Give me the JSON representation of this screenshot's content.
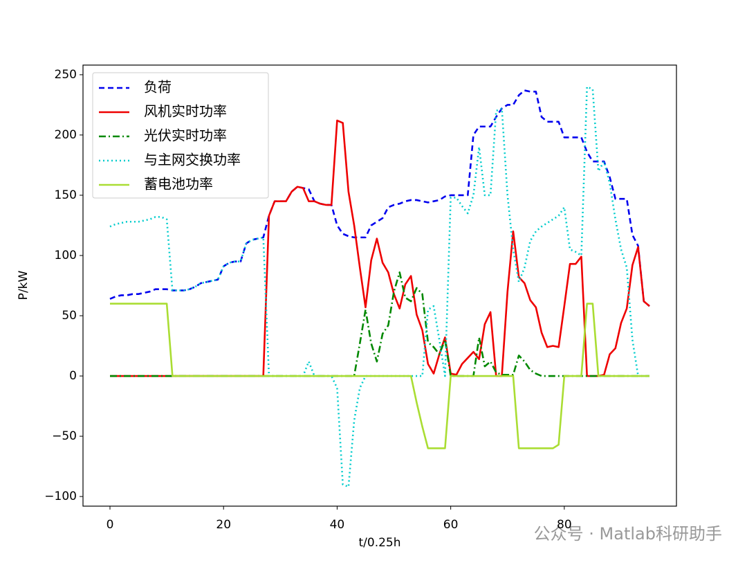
{
  "chart_data": {
    "type": "line",
    "xlabel": "t/0.25h",
    "ylabel": "P/kW",
    "watermark": "公众号 · Matlab科研助手",
    "x": [
      0,
      1,
      2,
      3,
      4,
      5,
      6,
      7,
      8,
      9,
      10,
      11,
      12,
      13,
      14,
      15,
      16,
      17,
      18,
      19,
      20,
      21,
      22,
      23,
      24,
      25,
      26,
      27,
      28,
      29,
      30,
      31,
      32,
      33,
      34,
      35,
      36,
      37,
      38,
      39,
      40,
      41,
      42,
      43,
      44,
      45,
      46,
      47,
      48,
      49,
      50,
      51,
      52,
      53,
      54,
      55,
      56,
      57,
      58,
      59,
      60,
      61,
      62,
      63,
      64,
      65,
      66,
      67,
      68,
      69,
      70,
      71,
      72,
      73,
      74,
      75,
      76,
      77,
      78,
      79,
      80,
      81,
      82,
      83,
      84,
      85,
      86,
      87,
      88,
      89,
      90,
      91,
      92,
      93,
      94,
      95
    ],
    "series": [
      {
        "name": "负荷",
        "color": "#0000ee",
        "dash": "8,5",
        "values": [
          64,
          66,
          67,
          67,
          68,
          68,
          69,
          70,
          72,
          72,
          72,
          71,
          71,
          71,
          72,
          74,
          77,
          78,
          79,
          80,
          91,
          94,
          95,
          95,
          110,
          113,
          114,
          115,
          133,
          145,
          145,
          145,
          153,
          157,
          156,
          155,
          145,
          143,
          142,
          142,
          125,
          118,
          116,
          115,
          115,
          115,
          125,
          128,
          131,
          140,
          142,
          143,
          145,
          146,
          146,
          145,
          144,
          145,
          146,
          149,
          150,
          150,
          150,
          150,
          200,
          207,
          207,
          207,
          215,
          222,
          225,
          225,
          233,
          237,
          236,
          236,
          215,
          211,
          211,
          211,
          198,
          198,
          198,
          198,
          186,
          178,
          178,
          178,
          165,
          147,
          147,
          147,
          117,
          108,
          62,
          58
        ]
      },
      {
        "name": "风机实时功率",
        "color": "#ee0000",
        "dash": "",
        "values": [
          0,
          0,
          0,
          0,
          0,
          0,
          0,
          0,
          0,
          0,
          0,
          0,
          0,
          0,
          0,
          0,
          0,
          0,
          0,
          0,
          0,
          0,
          0,
          0,
          0,
          0,
          0,
          0,
          133,
          145,
          145,
          145,
          153,
          157,
          156,
          145,
          145,
          143,
          142,
          142,
          212,
          210,
          153,
          125,
          90,
          57,
          96,
          114,
          94,
          86,
          68,
          56,
          76,
          83,
          51,
          38,
          10,
          2,
          18,
          32,
          2,
          1,
          10,
          15,
          20,
          14,
          43,
          53,
          0,
          0,
          70,
          120,
          82,
          77,
          63,
          57,
          36,
          24,
          25,
          24,
          58,
          93,
          93,
          99,
          0,
          0,
          0,
          1,
          18,
          23,
          44,
          56,
          92,
          107,
          62,
          58
        ]
      },
      {
        "name": "光伏实时功率",
        "color": "#008800",
        "dash": "10,4,2,4",
        "values": [
          0,
          0,
          0,
          0,
          0,
          0,
          0,
          0,
          0,
          0,
          0,
          0,
          0,
          0,
          0,
          0,
          0,
          0,
          0,
          0,
          0,
          0,
          0,
          0,
          0,
          0,
          0,
          0,
          0,
          0,
          0,
          0,
          0,
          0,
          0,
          0,
          0,
          0,
          0,
          0,
          0,
          0,
          0,
          0,
          27,
          55,
          27,
          12,
          35,
          42,
          70,
          86,
          65,
          62,
          73,
          68,
          28,
          24,
          18,
          30,
          0,
          0,
          0,
          0,
          0,
          32,
          8,
          12,
          3,
          1,
          1,
          1,
          17,
          12,
          5,
          2,
          0,
          0,
          0,
          0,
          0,
          0,
          0,
          0,
          0,
          0,
          0,
          0,
          0,
          0,
          0,
          0,
          0,
          0,
          0,
          0
        ]
      },
      {
        "name": "与主网交换功率",
        "color": "#00cccc",
        "dash": "2,4",
        "values": [
          124,
          126,
          127,
          128,
          128,
          128,
          129,
          130,
          132,
          132,
          130,
          71,
          71,
          71,
          72,
          74,
          77,
          78,
          79,
          80,
          91,
          94,
          95,
          95,
          110,
          113,
          114,
          115,
          0,
          0,
          0,
          0,
          0,
          0,
          0,
          12,
          0,
          0,
          0,
          0,
          -10,
          -90,
          -92,
          -37,
          -10,
          0,
          0,
          0,
          0,
          0,
          0,
          0,
          0,
          0,
          0,
          0,
          55,
          58,
          30,
          0,
          148,
          148,
          141,
          135,
          150,
          190,
          150,
          150,
          220,
          222,
          150,
          105,
          78,
          90,
          112,
          120,
          124,
          127,
          130,
          133,
          140,
          105,
          103,
          100,
          240,
          238,
          170,
          178,
          160,
          130,
          105,
          90,
          30,
          0,
          0,
          0
        ]
      },
      {
        "name": "蓄电池功率",
        "color": "#aadd33",
        "dash": "",
        "values": [
          60,
          60,
          60,
          60,
          60,
          60,
          60,
          60,
          60,
          60,
          60,
          0,
          0,
          0,
          0,
          0,
          0,
          0,
          0,
          0,
          0,
          0,
          0,
          0,
          0,
          0,
          0,
          0,
          0,
          0,
          0,
          0,
          0,
          0,
          0,
          0,
          0,
          0,
          0,
          0,
          0,
          0,
          0,
          0,
          0,
          0,
          0,
          0,
          0,
          0,
          0,
          0,
          0,
          0,
          -22,
          -42,
          -60,
          -60,
          -60,
          -60,
          0,
          0,
          0,
          0,
          0,
          0,
          0,
          0,
          0,
          0,
          0,
          0,
          -60,
          -60,
          -60,
          -60,
          -60,
          -60,
          -60,
          -57,
          0,
          0,
          0,
          0,
          60,
          60,
          0,
          0,
          0,
          0,
          0,
          0,
          0,
          0,
          0,
          0
        ]
      }
    ],
    "xlim": [
      -4.75,
      99.75
    ],
    "ylim": [
      -108,
      258
    ],
    "xticks": [
      0,
      20,
      40,
      60,
      80
    ],
    "yticks": [
      {
        "value": -100,
        "label": "−100"
      },
      {
        "value": -50,
        "label": "−50"
      },
      0,
      50,
      100,
      150,
      200,
      250
    ],
    "legend": "upper left"
  }
}
